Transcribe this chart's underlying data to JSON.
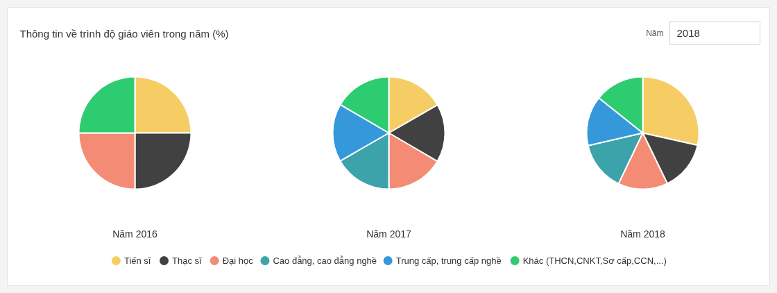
{
  "chart_data": {
    "type": "pie",
    "title": "Thông tin về trình độ giáo viên trong năm (%)",
    "annotations": [
      "Năm",
      "2018"
    ],
    "categories": [
      "Tiến sĩ",
      "Thạc sĩ",
      "Đại học",
      "Cao đẳng, cao đẳng nghề",
      "Trung cấp, trung cấp nghề",
      "Khác (THCN,CNKT,Sơ cấp,CCN,...)"
    ],
    "colors": [
      "#f6cd65",
      "#414141",
      "#f48b74",
      "#3ca3aa",
      "#3498db",
      "#2ecc71"
    ],
    "series": [
      {
        "name": "Năm 2016",
        "values": [
          25,
          25,
          25,
          0,
          0,
          25
        ]
      },
      {
        "name": "Năm 2017",
        "values": [
          16.7,
          16.7,
          16.6,
          16.7,
          16.7,
          16.6
        ]
      },
      {
        "name": "Năm 2018",
        "values": [
          28.5,
          14.3,
          14.3,
          14.3,
          14.3,
          14.3
        ]
      }
    ],
    "legend": "bottom"
  }
}
